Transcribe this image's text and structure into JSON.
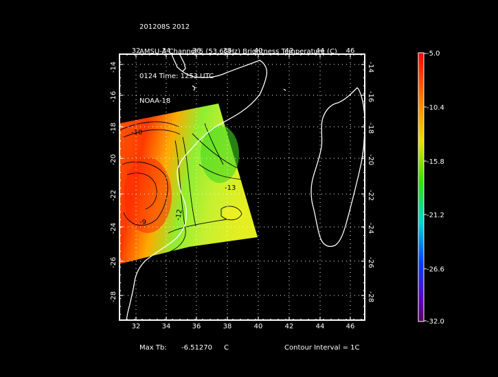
{
  "title": {
    "line1": "201208S 2012",
    "line2": "AMSU-A Channel 5 (53.6GHz) Brightness Temperature (C)",
    "line3": "0124 Time: 1253 UTC",
    "line4": "NOAA-18"
  },
  "map": {
    "lon_ticks": [
      "32",
      "34",
      "36",
      "38",
      "40",
      "42",
      "44",
      "46"
    ],
    "lat_ticks": [
      "-14",
      "-16",
      "-18",
      "-20",
      "-22",
      "-24",
      "-26",
      "-28"
    ],
    "contour_labels": [
      "-10",
      "-13",
      "-12",
      "-9"
    ]
  },
  "colorbar": {
    "labels": [
      "-5.0",
      "-10.4",
      "-15.8",
      "-21.2",
      "-26.6",
      "-32.0"
    ]
  },
  "footer": {
    "max_label": "Max Tb:",
    "max_value": "-6.51270",
    "max_unit": "C",
    "contour": "Contour Interval = 1C"
  },
  "colors": {
    "background": "#000000",
    "coastline": "#ffffff",
    "grid": "#ffffff"
  }
}
